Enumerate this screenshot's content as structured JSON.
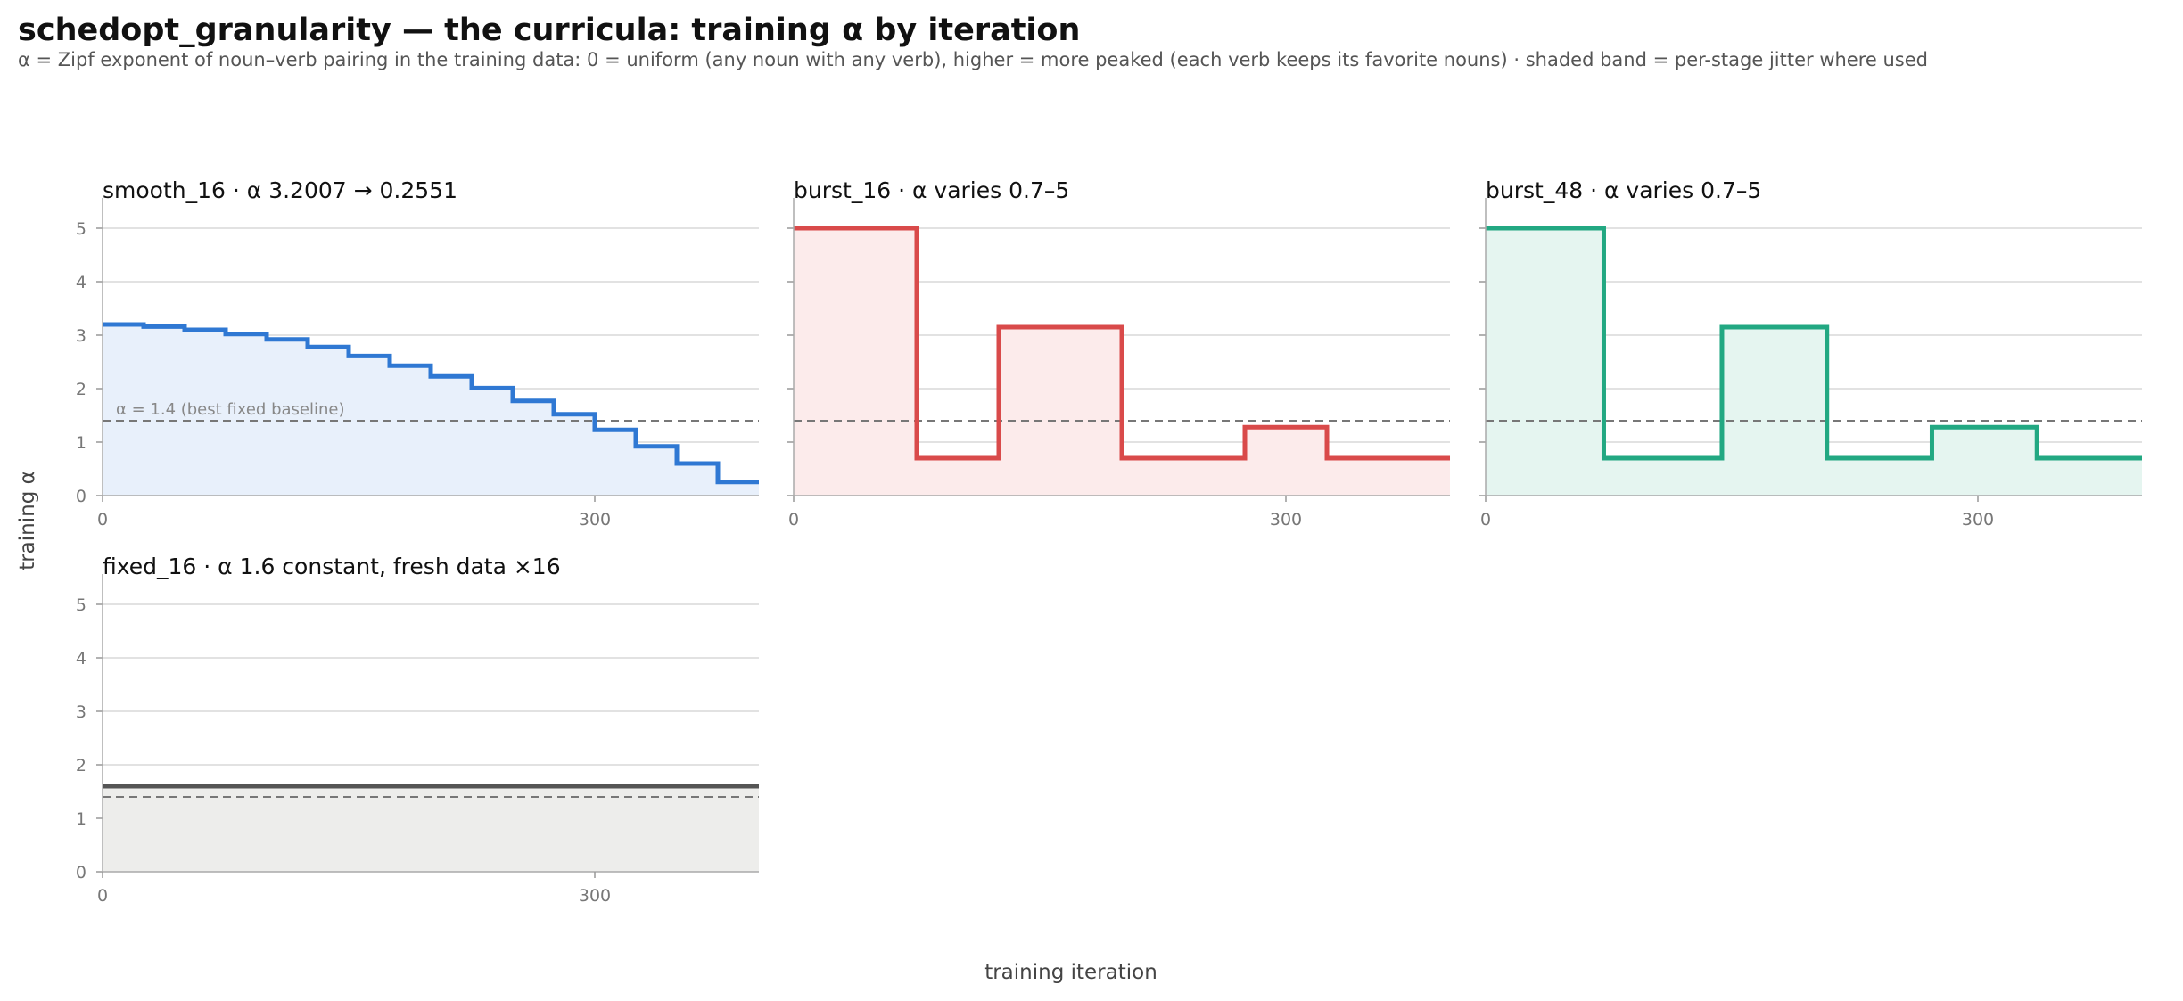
{
  "figure": {
    "title": "schedopt_granularity — the curricula: training α by iteration",
    "subtitle": "α = Zipf exponent of noun–verb pairing in the training data: 0 = uniform (any noun with any verb), higher = more peaked (each verb keeps its favorite nouns) · shaded band = per-stage jitter where used",
    "ylabel": "training α",
    "xlabel": "training iteration"
  },
  "chart_data": [
    {
      "type": "line",
      "title": "smooth_16   ·   α 3.2007 → 0.2551",
      "color": "#2f78d3",
      "fill": "#e8f0fb",
      "xlim": [
        0,
        400
      ],
      "ylim": [
        0,
        5.3
      ],
      "x_ticks": [
        0,
        300
      ],
      "y_ticks": [
        0,
        1,
        2,
        3,
        4,
        5
      ],
      "baseline": 1.4,
      "baseline_label": "α = 1.4 (best fixed baseline)",
      "steps": [
        {
          "x0": 0,
          "x1": 25,
          "y": 3.2007
        },
        {
          "x0": 25,
          "x1": 50,
          "y": 3.16
        },
        {
          "x0": 50,
          "x1": 75,
          "y": 3.1
        },
        {
          "x0": 75,
          "x1": 100,
          "y": 3.02
        },
        {
          "x0": 100,
          "x1": 125,
          "y": 2.92
        },
        {
          "x0": 125,
          "x1": 150,
          "y": 2.78
        },
        {
          "x0": 150,
          "x1": 175,
          "y": 2.61
        },
        {
          "x0": 175,
          "x1": 200,
          "y": 2.43
        },
        {
          "x0": 200,
          "x1": 225,
          "y": 2.23
        },
        {
          "x0": 225,
          "x1": 250,
          "y": 2.01
        },
        {
          "x0": 250,
          "x1": 275,
          "y": 1.77
        },
        {
          "x0": 275,
          "x1": 300,
          "y": 1.52
        },
        {
          "x0": 300,
          "x1": 325,
          "y": 1.23
        },
        {
          "x0": 325,
          "x1": 350,
          "y": 0.92
        },
        {
          "x0": 350,
          "x1": 375,
          "y": 0.6
        },
        {
          "x0": 375,
          "x1": 400,
          "y": 0.2551
        }
      ]
    },
    {
      "type": "line",
      "title": "burst_16   ·   α varies 0.7–5",
      "color": "#d94a4a",
      "fill": "#fcebeb",
      "xlim": [
        0,
        400
      ],
      "ylim": [
        0,
        5.3
      ],
      "x_ticks": [
        0,
        300
      ],
      "y_ticks": [
        0,
        1,
        2,
        3,
        4,
        5
      ],
      "baseline": 1.4,
      "steps": [
        {
          "x0": 0,
          "x1": 75,
          "y": 5.0
        },
        {
          "x0": 75,
          "x1": 125,
          "y": 0.7
        },
        {
          "x0": 125,
          "x1": 200,
          "y": 3.15
        },
        {
          "x0": 200,
          "x1": 275,
          "y": 0.7
        },
        {
          "x0": 275,
          "x1": 325,
          "y": 1.28
        },
        {
          "x0": 325,
          "x1": 400,
          "y": 0.7
        }
      ]
    },
    {
      "type": "line",
      "title": "burst_48   ·   α varies 0.7–5",
      "color": "#22a882",
      "fill": "#e5f5f0",
      "xlim": [
        0,
        400
      ],
      "ylim": [
        0,
        5.3
      ],
      "x_ticks": [
        0,
        300
      ],
      "y_ticks": [
        0,
        1,
        2,
        3,
        4,
        5
      ],
      "baseline": 1.4,
      "steps": [
        {
          "x0": 0,
          "x1": 72,
          "y": 5.0
        },
        {
          "x0": 72,
          "x1": 144,
          "y": 0.7
        },
        {
          "x0": 144,
          "x1": 208,
          "y": 3.15
        },
        {
          "x0": 208,
          "x1": 272,
          "y": 0.7
        },
        {
          "x0": 272,
          "x1": 336,
          "y": 1.28
        },
        {
          "x0": 336,
          "x1": 400,
          "y": 0.7
        }
      ]
    },
    {
      "type": "line",
      "title": "fixed_16   ·   α 1.6 constant, fresh data ×16",
      "color": "#555555",
      "fill": "#ededeb",
      "xlim": [
        0,
        400
      ],
      "ylim": [
        0,
        5.3
      ],
      "x_ticks": [
        0,
        300
      ],
      "y_ticks": [
        0,
        1,
        2,
        3,
        4,
        5
      ],
      "baseline": 1.4,
      "steps": [
        {
          "x0": 0,
          "x1": 400,
          "y": 1.6
        }
      ]
    }
  ]
}
